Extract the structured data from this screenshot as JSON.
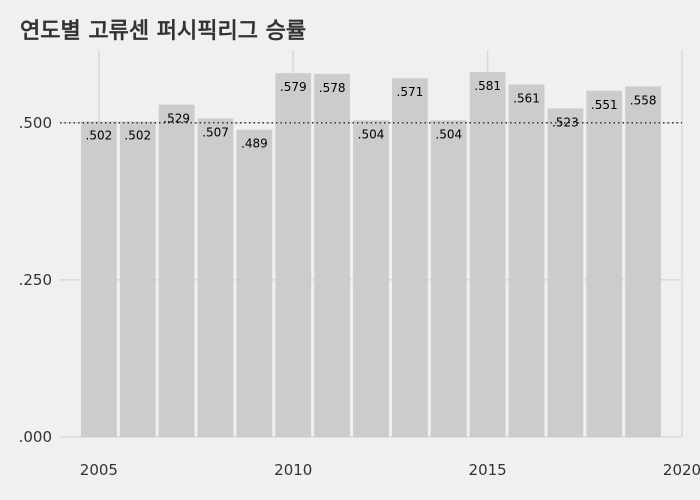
{
  "chart_data": {
    "type": "bar",
    "title": "연도별 고류센 퍼시픽리그 승률",
    "xlabel": "",
    "ylabel": "",
    "x": [
      2005,
      2006,
      2007,
      2008,
      2009,
      2010,
      2011,
      2012,
      2013,
      2014,
      2015,
      2016,
      2017,
      2018,
      2019
    ],
    "values": [
      0.502,
      0.502,
      0.529,
      0.507,
      0.489,
      0.579,
      0.578,
      0.504,
      0.571,
      0.504,
      0.581,
      0.561,
      0.523,
      0.551,
      0.558
    ],
    "value_labels": [
      ".502",
      ".502",
      ".529",
      ".507",
      ".489",
      ".579",
      ".578",
      ".504",
      ".571",
      ".504",
      ".581",
      ".561",
      ".523",
      ".551",
      ".558"
    ],
    "xlim": [
      2004,
      2020
    ],
    "ylim": [
      0,
      0.6
    ],
    "x_ticks": [
      2005,
      2010,
      2015,
      2020
    ],
    "x_tick_labels": [
      "2005",
      "2010",
      "2015",
      "2020"
    ],
    "y_ticks": [
      0,
      0.25,
      0.5
    ],
    "y_tick_labels": [
      ".000",
      ".250",
      ".500"
    ],
    "reference_line": 0.5,
    "grid": true,
    "colors": {
      "background": "#f0f0f0",
      "bar": "#cccccc",
      "grid": "#d9d9d9",
      "text": "#333333"
    }
  }
}
